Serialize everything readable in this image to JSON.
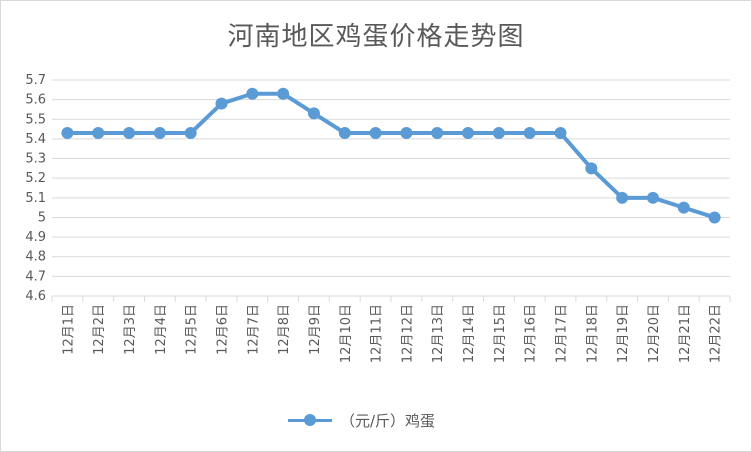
{
  "chart_data": {
    "type": "line",
    "title": "河南地区鸡蛋价格走势图",
    "categories": [
      "12月1日",
      "12月2日",
      "12月3日",
      "12月4日",
      "12月5日",
      "12月6日",
      "12月7日",
      "12月8日",
      "12月9日",
      "12月10日",
      "12月11日",
      "12月12日",
      "12月13日",
      "12月14日",
      "12月15日",
      "12月16日",
      "12月17日",
      "12月18日",
      "12月19日",
      "12月20日",
      "12月21日",
      "12月22日"
    ],
    "series": [
      {
        "name": "（元/斤）鸡蛋",
        "color": "#5b9bd5",
        "values": [
          5.43,
          5.43,
          5.43,
          5.43,
          5.43,
          5.58,
          5.63,
          5.63,
          5.53,
          5.43,
          5.43,
          5.43,
          5.43,
          5.43,
          5.43,
          5.43,
          5.43,
          5.25,
          5.1,
          5.1,
          5.05,
          5.0
        ]
      }
    ],
    "ylim": [
      4.6,
      5.7
    ],
    "yticks": [
      "4.6",
      "4.7",
      "4.8",
      "4.9",
      "5",
      "5.1",
      "5.2",
      "5.3",
      "5.4",
      "5.5",
      "5.6",
      "5.7"
    ],
    "grid": true,
    "legend_position": "bottom"
  }
}
